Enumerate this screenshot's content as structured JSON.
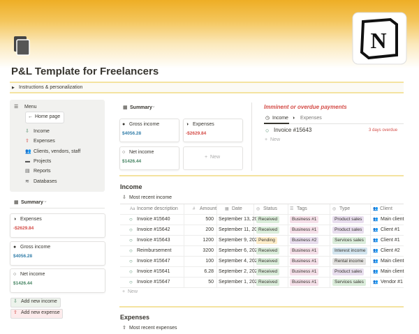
{
  "header": {
    "title": "P&L Template for Freelancers",
    "toggle": "Instructions & personalization"
  },
  "sidebar": {
    "menu": "Menu",
    "home_button": "Home page",
    "items": [
      "Income",
      "Expenses",
      "Clients, vendors, staff",
      "Projects",
      "Reports",
      "Databases"
    ],
    "summary_title": "Summary",
    "cards": [
      {
        "label": "Expenses",
        "value": "-$2629.84"
      },
      {
        "label": "Gross income",
        "value": "$4056.28"
      },
      {
        "label": "Net income",
        "value": "$1426.44"
      }
    ],
    "buttons": [
      "Add new income",
      "Add new expense"
    ]
  },
  "summary": {
    "title": "Summary",
    "cards": [
      {
        "label": "Gross income",
        "value": "$4056.28"
      },
      {
        "label": "Expenses",
        "value": "-$2629.84"
      },
      {
        "label": "Net income",
        "value": "$1426.44"
      }
    ],
    "new": "New"
  },
  "overdue": {
    "title": "Imminent or overdue payments",
    "tabs": [
      "Income",
      "Expenses"
    ],
    "rows": [
      {
        "name": "Invoice #15643",
        "status": "3 days overdue"
      }
    ],
    "new": "New"
  },
  "income": {
    "title": "Income",
    "view": "Most recent income",
    "columns": [
      "Income description",
      "Amount",
      "Date",
      "Status",
      "Tags",
      "Type",
      "Client"
    ],
    "rows": [
      [
        "Invoice #15640",
        500,
        "September 13, 20",
        "Received",
        "Business #1",
        "Product sales",
        "Main client"
      ],
      [
        "Invoice #15642",
        200,
        "September 11, 202",
        "Received",
        "Business #1",
        "Product sales",
        "Client #1"
      ],
      [
        "Invoice #15643",
        1200,
        "September 9, 202",
        "Pending",
        "Business #2",
        "Services sales",
        "Client #1"
      ],
      [
        "Reimbursement",
        3200,
        "September 6, 202",
        "Received",
        "Business #1",
        "Interest income",
        "Client #2"
      ],
      [
        "Invoice #15647",
        100,
        "September 4, 202",
        "Received",
        "Business #1",
        "Rental income",
        "Main client"
      ],
      [
        "Invoice #15641",
        6.28,
        "September 2, 202",
        "Received",
        "Business #1",
        "Product sales",
        "Main client"
      ],
      [
        "Invoice #15647",
        50,
        "September 1, 202",
        "Received",
        "Business #1",
        "Services sales",
        "Vendor #1"
      ]
    ],
    "new": "New"
  },
  "expenses": {
    "title": "Expenses",
    "view": "Most recent expenses"
  }
}
